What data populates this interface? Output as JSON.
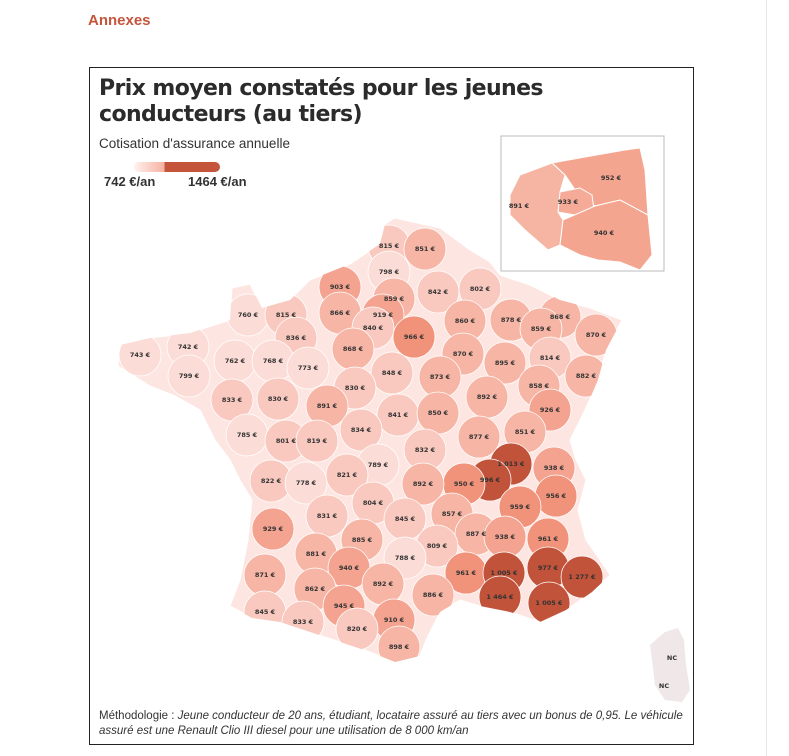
{
  "section_title": "Annexes",
  "title": "Prix moyen constatés pour les jeunes conducteurs (au tiers)",
  "subtitle": "Cotisation d'assurance annuelle",
  "legend": {
    "min": "742 €/an",
    "max": "1464 €/an",
    "min_color": "#fde3df",
    "max_color": "#c0533a"
  },
  "methodology": {
    "label": "Méthodologie :",
    "text": "Jeune conducteur de 20 ans, étudiant, locataire assuré au tiers avec un bonus de 0,95. Le véhicule assuré est une Renault Clio III diesel pour une utilisation de 8 000 km/an"
  },
  "inset": [
    "952 €",
    "933 €",
    "891 €",
    "940 €"
  ],
  "corsica": [
    "NC",
    "NC"
  ],
  "departments": [
    "815 €",
    "851 €",
    "798 €",
    "903 €",
    "842 €",
    "802 €",
    "859 €",
    "760 €",
    "815 €",
    "866 €",
    "919 €",
    "860 €",
    "878 €",
    "868 €",
    "840 €",
    "859 €",
    "870 €",
    "836 €",
    "966 €",
    "743 €",
    "742 €",
    "762 €",
    "768 €",
    "868 €",
    "870 €",
    "814 €",
    "895 €",
    "773 €",
    "848 €",
    "873 €",
    "882 €",
    "799 €",
    "858 €",
    "830 €",
    "892 €",
    "833 €",
    "830 €",
    "891 €",
    "926 €",
    "841 €",
    "850 €",
    "785 €",
    "801 €",
    "819 €",
    "834 €",
    "877 €",
    "851 €",
    "832 €",
    "1 013 €",
    "938 €",
    "789 €",
    "996 €",
    "950 €",
    "892 €",
    "822 €",
    "778 €",
    "821 €",
    "956 €",
    "804 €",
    "959 €",
    "831 €",
    "845 €",
    "857 €",
    "929 €",
    "887 €",
    "938 €",
    "961 €",
    "885 €",
    "809 €",
    "881 €",
    "788 €",
    "940 €",
    "871 €",
    "961 €",
    "1 005 €",
    "977 €",
    "1 277 €",
    "892 €",
    "862 €",
    "886 €",
    "1 464 €",
    "1 005 €",
    "945 €",
    "845 €",
    "833 €",
    "910 €",
    "820 €",
    "898 €"
  ]
}
